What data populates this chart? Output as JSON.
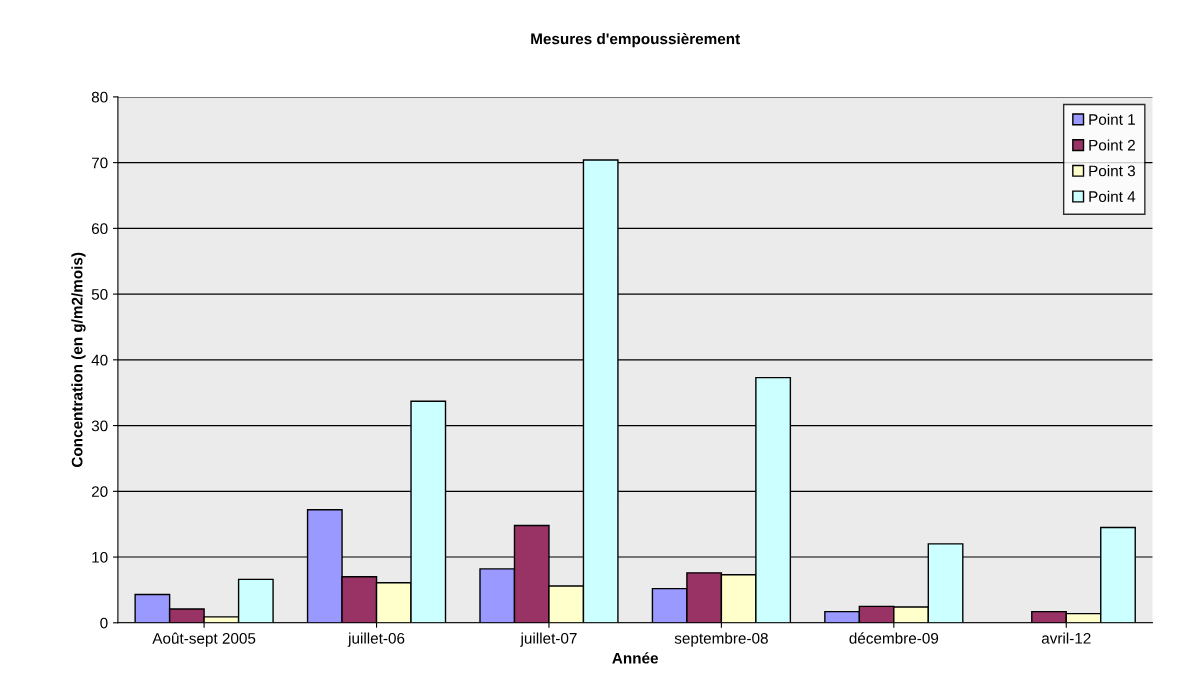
{
  "chart_data": {
    "type": "bar",
    "title": "Mesures d'empoussièrement",
    "xlabel": "Année",
    "ylabel": "Concentration (en g/m2/mois)",
    "categories": [
      "Août-sept 2005",
      "juillet-06",
      "juillet-07",
      "septembre-08",
      "décembre-09",
      "avril-12"
    ],
    "series": [
      {
        "name": "Point 1",
        "color": "#9999ff",
        "values": [
          4.3,
          17.2,
          8.2,
          5.2,
          1.7,
          null
        ]
      },
      {
        "name": "Point 2",
        "color": "#993366",
        "values": [
          2.1,
          7.0,
          14.8,
          7.6,
          2.5,
          1.7
        ]
      },
      {
        "name": "Point 3",
        "color": "#ffffcc",
        "values": [
          0.9,
          6.1,
          5.6,
          7.3,
          2.4,
          1.4
        ]
      },
      {
        "name": "Point 4",
        "color": "#ccffff",
        "values": [
          6.6,
          33.7,
          70.4,
          37.3,
          12.0,
          14.5
        ]
      }
    ],
    "ylim": [
      0,
      80
    ],
    "yticks": [
      0,
      10,
      20,
      30,
      40,
      50,
      60,
      70,
      80
    ],
    "grid": "y",
    "legend": "top right"
  }
}
